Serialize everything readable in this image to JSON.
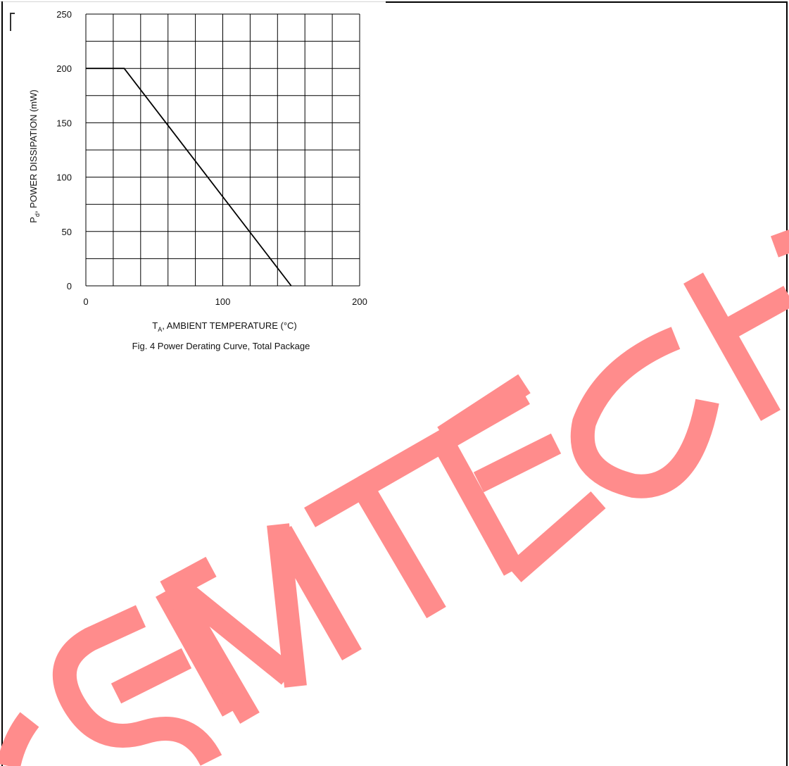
{
  "chart_data": {
    "type": "line",
    "x_label_main": "T",
    "x_label_sub": "A",
    "x_label_rest": ", AMBIENT TEMPERATURE (°C)",
    "y_label_main": "P",
    "y_label_sub": "d",
    "y_label_rest": ", POWER DISSIPATION (mW)",
    "caption": "Fig. 4  Power Derating Curve, Total Package",
    "xlim": [
      0,
      200
    ],
    "ylim": [
      0,
      250
    ],
    "x_ticks": [
      0,
      100,
      200
    ],
    "y_ticks": [
      0,
      50,
      100,
      150,
      200,
      250
    ],
    "x_grid_step": 20,
    "y_grid_step": 25,
    "grid": true,
    "series": [
      {
        "x": [
          0,
          28,
          150
        ],
        "y": [
          200,
          200,
          0
        ],
        "color": "#000000"
      }
    ]
  },
  "watermark": {
    "text": "SEMTECH",
    "color": "#ff8c8c"
  }
}
